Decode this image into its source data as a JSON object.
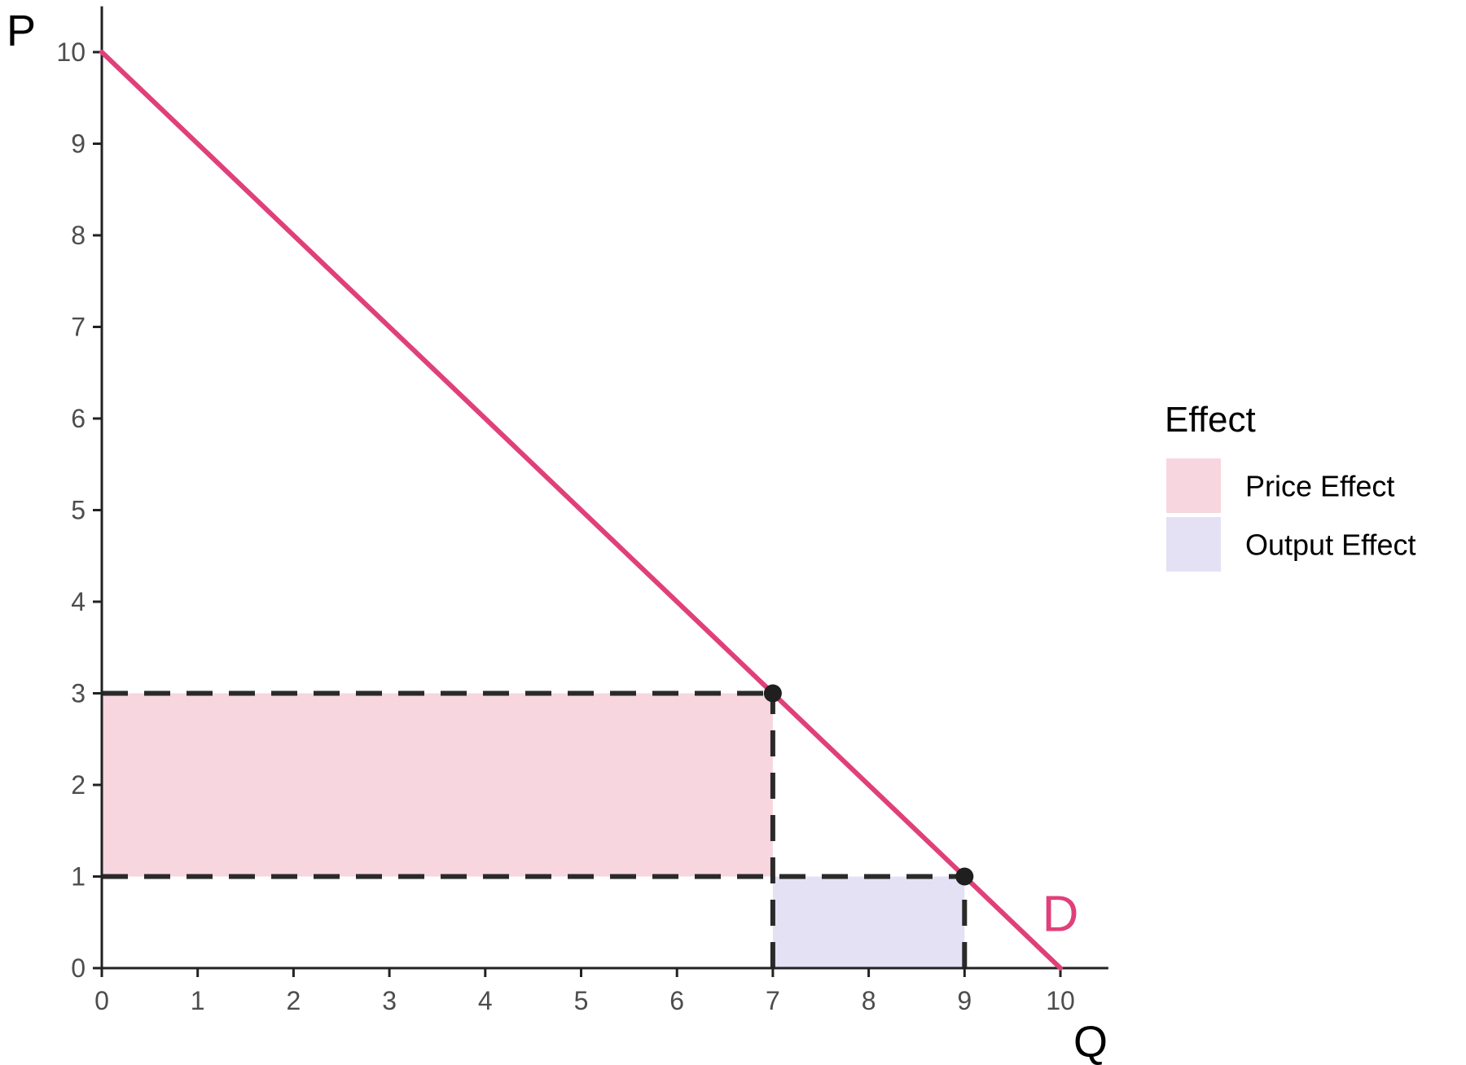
{
  "chart_data": {
    "type": "line",
    "xlabel": "Q",
    "ylabel": "P",
    "xlim": [
      0,
      10.5
    ],
    "ylim": [
      0,
      10.5
    ],
    "x_ticks": [
      0,
      1,
      2,
      3,
      4,
      5,
      6,
      7,
      8,
      9,
      10
    ],
    "y_ticks": [
      0,
      1,
      2,
      3,
      4,
      5,
      6,
      7,
      8,
      9,
      10
    ],
    "grid": false,
    "series": [
      {
        "name": "D",
        "x": [
          0,
          10
        ],
        "y": [
          10,
          0
        ],
        "color": "#e0407a"
      }
    ],
    "curve_label": {
      "text": "D",
      "x": 10,
      "y": 0.6,
      "color": "#e0407a"
    },
    "points": [
      {
        "x": 7,
        "y": 3
      },
      {
        "x": 9,
        "y": 1
      }
    ],
    "dashed_lines": [
      {
        "x": [
          0,
          7
        ],
        "y": [
          3,
          3
        ]
      },
      {
        "x": [
          0,
          9
        ],
        "y": [
          1,
          1
        ]
      },
      {
        "x": [
          7,
          7
        ],
        "y": [
          0,
          3
        ]
      },
      {
        "x": [
          9,
          9
        ],
        "y": [
          0,
          1
        ]
      }
    ],
    "areas": [
      {
        "label": "Price Effect",
        "x": [
          0,
          7
        ],
        "y": [
          1,
          3
        ],
        "color": "#f7d6df"
      },
      {
        "label": "Output Effect",
        "x": [
          7,
          9
        ],
        "y": [
          0,
          1
        ],
        "color": "#e4e1f5"
      }
    ],
    "legend": {
      "title": "Effect",
      "position": "right",
      "items": [
        {
          "label": "Price Effect",
          "color": "#f7d6df"
        },
        {
          "label": "Output Effect",
          "color": "#e4e1f5"
        }
      ]
    },
    "colors": {
      "axis": "#222222",
      "tick_label": "#4d4d4d",
      "dash": "#2a2a2a",
      "point": "#1f1f1f"
    }
  }
}
